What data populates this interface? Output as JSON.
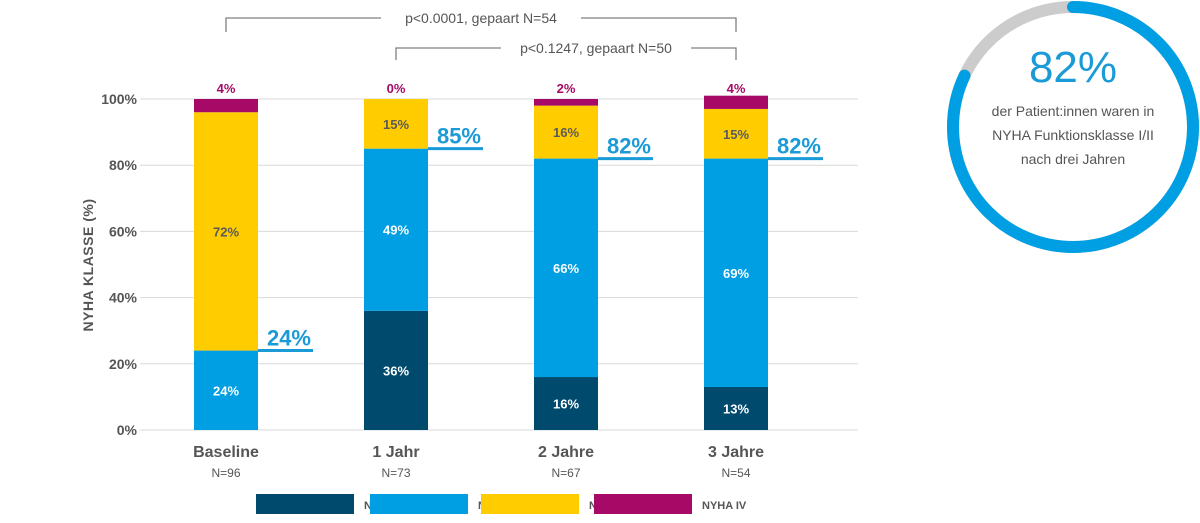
{
  "chart_data": {
    "type": "bar",
    "stacked": true,
    "ylabel": "NYHA KLASSE (%)",
    "ylim": [
      0,
      100
    ],
    "yticks": [
      "0%",
      "20%",
      "40%",
      "60%",
      "80%",
      "100%"
    ],
    "grid": true,
    "legend_position": "bottom",
    "categories": [
      "Baseline",
      "1 Jahr",
      "2 Jahre",
      "3 Jahre"
    ],
    "sample_sizes": [
      "N=96",
      "N=73",
      "N=67",
      "N=54"
    ],
    "series": [
      {
        "name": "NYHA I",
        "color": "#004a6e",
        "values": [
          0,
          36,
          16,
          13
        ],
        "labels": [
          "",
          "36%",
          "16%",
          "13%"
        ]
      },
      {
        "name": "NYHA II",
        "color": "#009fe3",
        "values": [
          24,
          49,
          66,
          69
        ],
        "labels": [
          "24%",
          "49%",
          "66%",
          "69%"
        ]
      },
      {
        "name": "NYHA III",
        "color": "#ffcc00",
        "values": [
          72,
          15,
          16,
          15
        ],
        "labels": [
          "72%",
          "15%",
          "16%",
          "15%"
        ]
      },
      {
        "name": "NYHA IV",
        "color": "#a60a66",
        "values": [
          4,
          0,
          2,
          4
        ],
        "labels": [
          "4%",
          "0%",
          "2%",
          "4%"
        ]
      }
    ],
    "cumulative_labels": [
      {
        "value": 24,
        "label": "24%"
      },
      {
        "value": 85,
        "label": "85%"
      },
      {
        "value": 82,
        "label": "82%"
      },
      {
        "value": 82,
        "label": "82%"
      }
    ],
    "comparisons": [
      {
        "from": 0,
        "to": 3,
        "label": "p<0.0001, gepaart N=54"
      },
      {
        "from": 1,
        "to": 3,
        "label": "p<0.1247, gepaart N=50"
      }
    ]
  },
  "summary": {
    "value": 82,
    "value_label": "82%",
    "text_lines": [
      "der Patient:innen waren in",
      "NYHA Funktionsklasse I/II",
      "nach drei Jahren"
    ],
    "ring_color": "#009fe3",
    "track_color": "#cccccc"
  },
  "colors": {
    "axis_text": "#555555",
    "grid": "#d9d9d9",
    "bracket": "#808080",
    "highlight": "#1a9ad6",
    "iv_label": "#a60a66"
  }
}
